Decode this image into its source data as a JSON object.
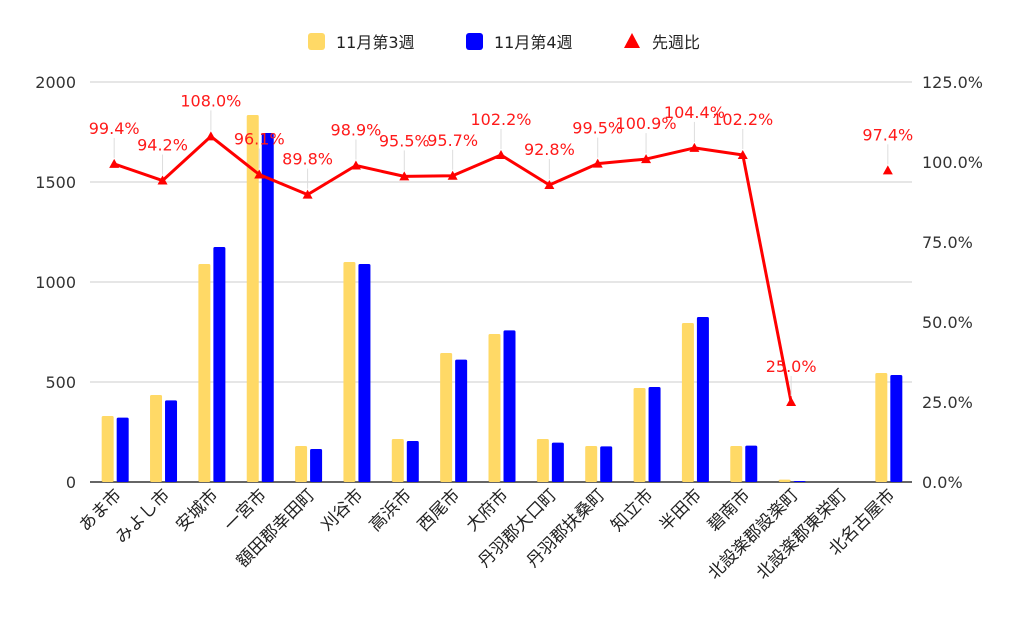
{
  "chart_data": {
    "type": "bar",
    "categories": [
      "あま市",
      "みよし市",
      "安城市",
      "一宮市",
      "額田郡幸田町",
      "刈谷市",
      "高浜市",
      "西尾市",
      "大府市",
      "丹羽郡大口町",
      "丹羽郡扶桑町",
      "知立市",
      "半田市",
      "碧南市",
      "北設楽郡設楽町",
      "北設楽郡東栄町",
      "北名古屋市"
    ],
    "series": [
      {
        "name": "11月第3週",
        "type": "bar",
        "axis": "left",
        "color": "#ffd966",
        "values": [
          330,
          435,
          1090,
          1835,
          180,
          1100,
          215,
          645,
          740,
          215,
          180,
          470,
          795,
          180,
          12,
          0,
          545
        ]
      },
      {
        "name": "11月第4週",
        "type": "bar",
        "axis": "left",
        "color": "#0000ff",
        "values": [
          322,
          408,
          1175,
          1745,
          165,
          1090,
          205,
          612,
          758,
          197,
          178,
          475,
          825,
          182,
          3,
          0,
          535
        ]
      },
      {
        "name": "先週比",
        "type": "line",
        "axis": "right",
        "color": "#ff0000",
        "values": [
          99.4,
          94.2,
          108.0,
          96.1,
          89.8,
          98.9,
          95.5,
          95.7,
          102.2,
          92.8,
          99.5,
          100.9,
          104.4,
          102.2,
          25.0,
          null,
          97.4
        ],
        "labels": [
          "99.4%",
          "94.2%",
          "108.0%",
          "96.1%",
          "89.8%",
          "98.9%",
          "95.5%",
          "95.7%",
          "102.2%",
          "92.8%",
          "99.5%",
          "100.9%",
          "104.4%",
          "102.2%",
          "25.0%",
          "",
          "97.4%"
        ]
      }
    ],
    "left_axis": {
      "ylim": [
        0,
        2000
      ],
      "ticks": [
        "0",
        "500",
        "1000",
        "1500",
        "2000"
      ]
    },
    "right_axis": {
      "ylim": [
        0,
        125
      ],
      "ticks": [
        "0.0%",
        "25.0%",
        "50.0%",
        "75.0%",
        "100.0%",
        "125.0%"
      ]
    },
    "legend": {
      "position": "top"
    },
    "grid": true
  }
}
